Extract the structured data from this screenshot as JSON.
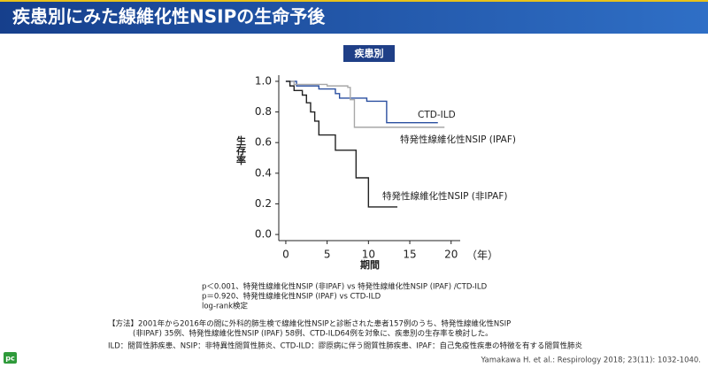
{
  "header": {
    "title": "疾患別にみた線維化性NSIPの生命予後",
    "tag": "疾患別"
  },
  "chart_data": {
    "type": "line",
    "drawstyle": "steps-post",
    "ylabel": "生存率",
    "xlabel": "期間",
    "x_unit": "（年）",
    "xlim": [
      -0.85,
      21.1
    ],
    "ylim": [
      -0.04,
      1.04
    ],
    "xticks": [
      0,
      5,
      10,
      15,
      20
    ],
    "yticks": [
      {
        "value": 0,
        "label": "0.0"
      },
      0.2,
      0.4,
      0.6,
      0.8,
      {
        "value": 1,
        "label": "1.0"
      }
    ],
    "series": [
      {
        "name": "CTD-ILD",
        "color": "#2a4fa0",
        "x": [
          0,
          1.3,
          4,
          6,
          6.5,
          9.8,
          12.2,
          18.4
        ],
        "values": [
          1.0,
          0.97,
          0.95,
          0.92,
          0.89,
          0.87,
          0.73,
          0.73
        ]
      },
      {
        "name": "特発性線維化性NSIP (IPAF)",
        "color": "#a8a8a8",
        "x": [
          0,
          1,
          5,
          7.5,
          7.8,
          8.3,
          19.2
        ],
        "values": [
          1.0,
          0.98,
          0.97,
          0.96,
          0.88,
          0.7,
          0.7
        ]
      },
      {
        "name": "特発性線維化性NSIP (非IPAF)",
        "color": "#222222",
        "x": [
          0,
          0.5,
          1,
          2,
          2.5,
          3,
          3.5,
          4,
          6,
          8.5,
          10,
          13.5
        ],
        "values": [
          1.0,
          0.97,
          0.94,
          0.91,
          0.86,
          0.8,
          0.74,
          0.65,
          0.55,
          0.37,
          0.18,
          0.18
        ]
      }
    ]
  },
  "notes": [
    "p＜0.001、特発性線維化性NSIP (非IPAF) vs 特発性線維化性NSIP (IPAF) /CTD-ILD",
    "p＝0.920、特発性線維化性NSIP (IPAF) vs CTD-ILD",
    "log-rank検定"
  ],
  "method": [
    "【方法】2001年から2016年の間に外科的肺生検で線維化性NSIPと診断された患者157例のうち、特発性線維化性NSIP",
    "(非IPAF) 35例、特発性線維化性NSIP (IPAF) 58例、CTD-ILD64例を対象に、疾患別の生存率を検討した。"
  ],
  "abbreviations": "ILD：間質性肺疾患、NSIP：非特異性間質性肺炎、CTD-ILD：膠原病に伴う間質性肺疾患、IPAF：自己免疫性疾患の特徴を有する間質性肺炎",
  "citation": "Yamakawa H. et al.: Respirology 2018; 23(11): 1032-1040.",
  "logo": "pc"
}
